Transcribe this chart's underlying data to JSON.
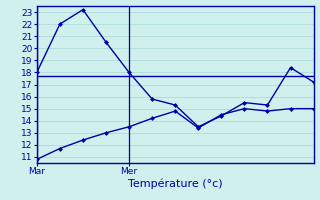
{
  "background_color": "#cff0ec",
  "grid_color": "#aaddd8",
  "line_color": "#0000aa",
  "axis_color": "#0000aa",
  "xlabel": "Température (°c)",
  "xlabel_fontsize": 8,
  "tick_fontsize": 6.5,
  "ylim": [
    10.5,
    23.5
  ],
  "yticks": [
    11,
    12,
    13,
    14,
    15,
    16,
    17,
    18,
    19,
    20,
    21,
    22,
    23
  ],
  "x_min": 0,
  "x_max": 12,
  "vline_x_mar": 0,
  "vline_x_mer": 4,
  "upper_line_x": [
    0,
    1,
    2,
    3,
    4,
    5,
    6,
    7,
    8,
    9,
    10,
    11,
    12
  ],
  "upper_line_y": [
    18.0,
    22.0,
    23.2,
    20.5,
    18.0,
    15.8,
    15.3,
    13.5,
    14.4,
    15.5,
    15.3,
    18.4,
    17.2
  ],
  "lower_line_x": [
    0,
    1,
    2,
    3,
    4,
    5,
    6,
    7,
    8,
    9,
    10,
    11,
    12
  ],
  "lower_line_y": [
    10.8,
    11.7,
    12.4,
    13.0,
    13.5,
    14.2,
    14.8,
    13.4,
    14.5,
    15.0,
    14.8,
    15.0,
    15.0
  ],
  "flat_line_x": [
    0,
    12
  ],
  "flat_line_y": [
    17.7,
    17.7
  ],
  "mar_label": "Mar",
  "mer_label": "Mer"
}
